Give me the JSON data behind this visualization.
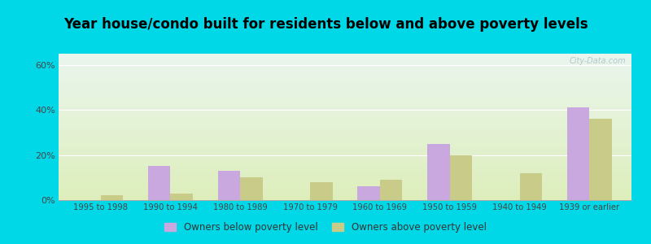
{
  "title": "Year house/condo built for residents below and above poverty levels",
  "categories": [
    "1995 to 1998",
    "1990 to 1994",
    "1980 to 1989",
    "1970 to 1979",
    "1960 to 1969",
    "1950 to 1959",
    "1940 to 1949",
    "1939 or earlier"
  ],
  "below_poverty": [
    0,
    15,
    13,
    0,
    6,
    25,
    0,
    41
  ],
  "above_poverty": [
    2,
    3,
    10,
    8,
    9,
    20,
    12,
    36
  ],
  "below_color": "#c8a8df",
  "above_color": "#c8cc88",
  "title_fontsize": 12,
  "yticks": [
    0,
    20,
    40,
    60
  ],
  "ylabel_ticks": [
    "0%",
    "20%",
    "40%",
    "60%"
  ],
  "ylim_max": 65,
  "bg_outer": "#00d8e8",
  "bg_inner_top": "#eaf5ee",
  "bg_inner_bottom": "#ddeebb",
  "legend_below": "Owners below poverty level",
  "legend_above": "Owners above poverty level",
  "watermark": "City-Data.com",
  "bar_width": 0.32
}
